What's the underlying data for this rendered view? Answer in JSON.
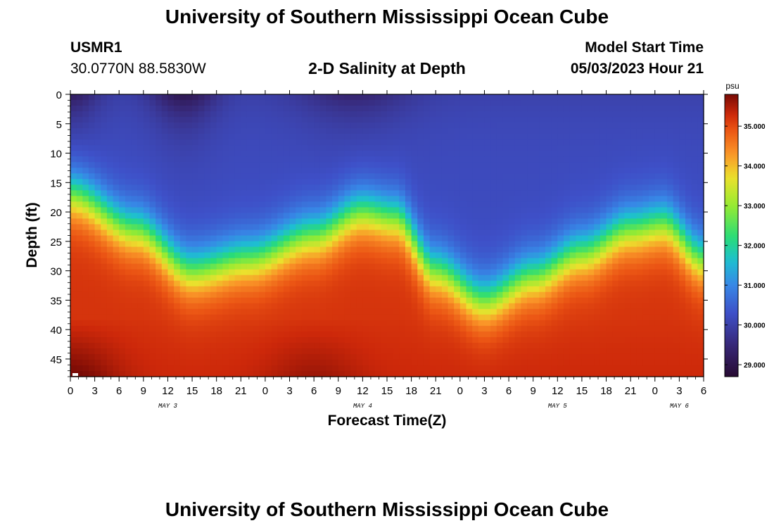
{
  "header": {
    "title": "University of Southern Mississippi Ocean Cube",
    "station_id": "USMR1",
    "coordinates": "30.0770N  88.5830W",
    "plot_title": "2-D Salinity at Depth",
    "model_start_label": "Model Start Time",
    "model_start_value": "05/03/2023 Hour 21"
  },
  "footer": {
    "title": "University of Southern Mississippi Ocean Cube"
  },
  "chart_data": {
    "type": "heatmap",
    "title": "2-D Salinity at Depth",
    "xlabel": "Forecast Time(Z)",
    "ylabel": "Depth (ft)",
    "x_range_hours": [
      0,
      78
    ],
    "ylim": [
      0,
      48
    ],
    "x_ticks": [
      "0",
      "3",
      "6",
      "9",
      "12",
      "15",
      "18",
      "21",
      "0",
      "3",
      "6",
      "9",
      "12",
      "15",
      "18",
      "21",
      "0",
      "3",
      "6",
      "9",
      "12",
      "15",
      "18",
      "21",
      "0",
      "3",
      "6"
    ],
    "day_labels": [
      {
        "label": "MAY 3",
        "hour": 12
      },
      {
        "label": "MAY 4",
        "hour": 36
      },
      {
        "label": "MAY 5",
        "hour": 60
      },
      {
        "label": "MAY 6",
        "hour": 75
      }
    ],
    "y_ticks": [
      0,
      5,
      10,
      15,
      20,
      25,
      30,
      35,
      40,
      45
    ],
    "colorbar": {
      "unit": "psu",
      "range": [
        28.7,
        35.8
      ],
      "ticks": [
        "29.000",
        "30.000",
        "31.000",
        "32.000",
        "33.000",
        "34.000",
        "35.000"
      ]
    },
    "halocline_depth_ft": [
      {
        "hour": 0,
        "depth": 17
      },
      {
        "hour": 8,
        "depth": 23
      },
      {
        "hour": 15,
        "depth": 30
      },
      {
        "hour": 22,
        "depth": 28
      },
      {
        "hour": 30,
        "depth": 24
      },
      {
        "hour": 36,
        "depth": 20
      },
      {
        "hour": 40,
        "depth": 21
      },
      {
        "hour": 45,
        "depth": 30
      },
      {
        "hour": 51,
        "depth": 35
      },
      {
        "hour": 57,
        "depth": 31
      },
      {
        "hour": 63,
        "depth": 27
      },
      {
        "hour": 69,
        "depth": 23
      },
      {
        "hour": 73,
        "depth": 22
      },
      {
        "hour": 78,
        "depth": 28
      }
    ],
    "values": {
      "surface_min": 29.0,
      "upper_layer": 30.2,
      "bottom_layer": 35.2,
      "bottom_max": 35.8
    }
  }
}
